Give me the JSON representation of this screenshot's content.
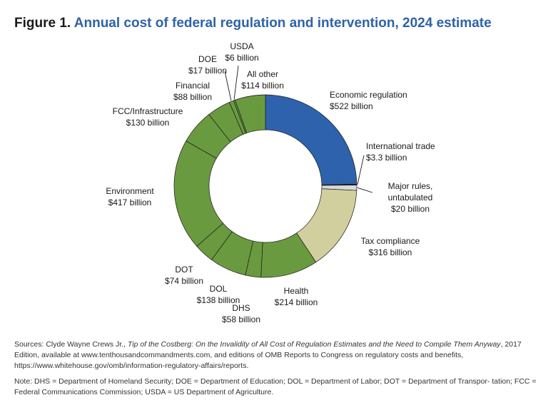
{
  "figure": {
    "number": "Figure 1.",
    "title": "Annual cost of federal regulation and intervention, 2024 estimate"
  },
  "chart_data": {
    "type": "pie",
    "variant": "donut",
    "colors": {
      "economic": "#2e62ad",
      "tax": "#d1cf9e",
      "social": "#6a9a3f",
      "other_dark": "#2b2b2b",
      "other_light": "#d9d9d9"
    },
    "slices": [
      {
        "name": "Economic regulation",
        "value_label": "$522 billion",
        "value": 522,
        "color": "#2e62ad"
      },
      {
        "name": "International trade",
        "value_label": "$3.3 billion",
        "value": 3.3,
        "color": "#2b2b2b"
      },
      {
        "name": "Major rules, untabulated",
        "value_label": "$20 billion",
        "value": 20,
        "color": "#d9d9d9"
      },
      {
        "name": "Tax compliance",
        "value_label": "$316 billion",
        "value": 316,
        "color": "#d1cf9e"
      },
      {
        "name": "Health",
        "value_label": "$214 billion",
        "value": 214,
        "color": "#6a9a3f"
      },
      {
        "name": "DHS",
        "value_label": "$58 billion",
        "value": 58,
        "color": "#6a9a3f"
      },
      {
        "name": "DOL",
        "value_label": "$138 billion",
        "value": 138,
        "color": "#6a9a3f"
      },
      {
        "name": "DOT",
        "value_label": "$74 billion",
        "value": 74,
        "color": "#6a9a3f"
      },
      {
        "name": "Environment",
        "value_label": "$417 billion",
        "value": 417,
        "color": "#6a9a3f"
      },
      {
        "name": "FCC/Infrastructure",
        "value_label": "$130 billion",
        "value": 130,
        "color": "#6a9a3f"
      },
      {
        "name": "Financial",
        "value_label": "$88 billion",
        "value": 88,
        "color": "#6a9a3f"
      },
      {
        "name": "DOE",
        "value_label": "$17 billion",
        "value": 17,
        "color": "#6a9a3f"
      },
      {
        "name": "USDA",
        "value_label": "$6 billion",
        "value": 6,
        "color": "#6a9a3f"
      },
      {
        "name": "All other",
        "value_label": "$114 billion",
        "value": 114,
        "color": "#6a9a3f"
      }
    ],
    "labels": [
      {
        "lines": [
          "Economic regulation",
          "$522 billion"
        ]
      },
      {
        "lines": [
          "International trade",
          "$3.3 billion"
        ]
      },
      {
        "lines": [
          "Major rules,",
          "untabulated",
          "$20 billion"
        ]
      },
      {
        "lines": [
          "Tax compliance",
          "$316 billion"
        ]
      },
      {
        "lines": [
          "Health",
          "$214 billion"
        ]
      },
      {
        "lines": [
          "DHS",
          "$58 billion"
        ]
      },
      {
        "lines": [
          "DOL",
          "$138 billion"
        ]
      },
      {
        "lines": [
          "DOT",
          "$74 billion"
        ]
      },
      {
        "lines": [
          "Environment",
          "$417 billion"
        ]
      },
      {
        "lines": [
          "FCC/Infrastructure",
          "$130 billion"
        ]
      },
      {
        "lines": [
          "Financial",
          "$88 billion"
        ]
      },
      {
        "lines": [
          "DOE",
          "$17 billion"
        ]
      },
      {
        "lines": [
          "USDA",
          "$6 billion"
        ]
      },
      {
        "lines": [
          "All other",
          "$114 billion"
        ]
      }
    ]
  },
  "sources": {
    "prefix": "Sources: Clyde Wayne Crews Jr., ",
    "italic": "Tip of the Costberg: On the Invalidity of All Cost of Regulation Estimates and the Need to Compile Them Anyway",
    "rest": ", 2017 Edition, available at www.tenthousandcommandments.com, and editions of OMB Reports to Congress on regulatory costs and benefits, https://www.whitehouse.gov/omb/information-regulatory-affairs/reports."
  },
  "note": "Note: DHS = Department of Homeland Security; DOE = Department of Education; DOL = Department of Labor; DOT = Department of Transpor- tation; FCC = Federal Communications Commission; USDA = US Department of Agriculture."
}
